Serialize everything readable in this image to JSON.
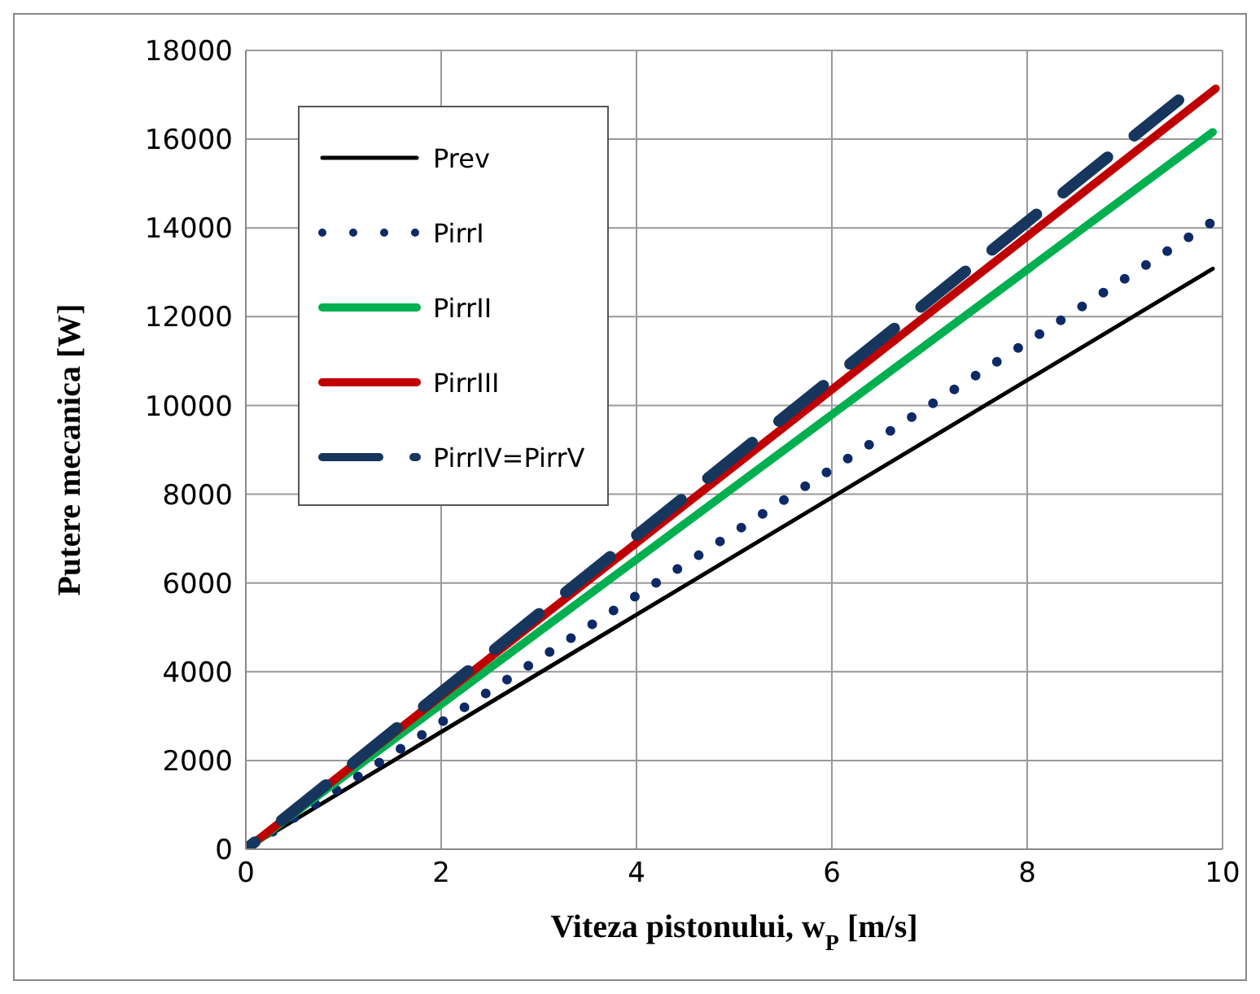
{
  "chart_data": {
    "type": "line",
    "xlabel": "Viteza pistonului, w$_{P}$ [m/s]",
    "ylabel": "Putere mecanica [W]",
    "xlim": [
      0,
      10
    ],
    "xticks": [
      0,
      2,
      4,
      6,
      8,
      10
    ],
    "ylim": [
      0,
      18000
    ],
    "yticks": [
      0,
      2000,
      4000,
      6000,
      8000,
      10000,
      12000,
      14000,
      16000,
      18000
    ],
    "grid": true,
    "legend": "top left",
    "marker": "none",
    "series": [
      {
        "name": "Prev",
        "color": "#000000",
        "x": [
          0,
          9.9
        ],
        "values": [
          0,
          13080
        ],
        "line_style": "solid"
      },
      {
        "name": "PirrI",
        "color": "#0d2a66",
        "x": [
          0,
          9.87
        ],
        "values": [
          0,
          14100
        ],
        "line_style": "dotted"
      },
      {
        "name": "PirrII",
        "color": "#00b050",
        "x": [
          0,
          9.9
        ],
        "values": [
          0,
          16160
        ],
        "line_style": "solid"
      },
      {
        "name": "PirrIII",
        "color": "#c00000",
        "x": [
          0,
          9.93
        ],
        "values": [
          0,
          17140
        ],
        "line_style": "solid"
      },
      {
        "name": "PirrIV=PirrV",
        "color": "#17365d",
        "x": [
          0,
          9.55
        ],
        "values": [
          0,
          16880
        ],
        "line_style": "dashed"
      }
    ]
  }
}
